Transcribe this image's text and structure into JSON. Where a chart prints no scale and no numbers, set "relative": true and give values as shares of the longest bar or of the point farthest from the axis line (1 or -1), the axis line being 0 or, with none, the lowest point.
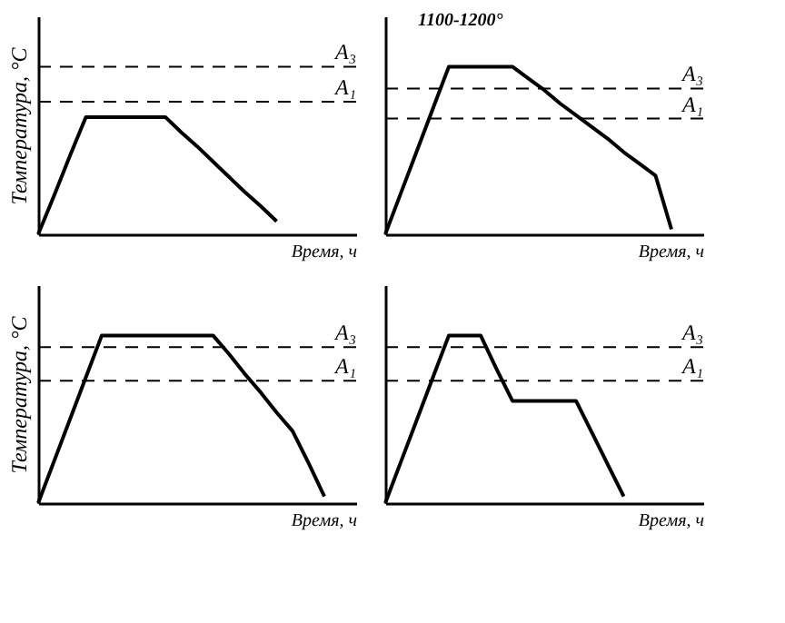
{
  "chart_data": [
    {
      "type": "line",
      "relative": true,
      "xlabel": "Время, ч",
      "ylabel": "Температура, °C",
      "line_style": "solid",
      "categories": [
        null,
        null,
        null,
        null,
        null,
        null,
        null,
        null,
        null,
        null,
        null,
        null,
        null,
        null,
        null,
        null,
        null,
        null,
        null,
        null,
        null
      ],
      "series": [
        {
          "color": "#000000",
          "values": [
            0,
            0.33,
            0.67,
            1,
            1,
            1,
            1,
            1,
            1,
            0.87,
            0.75,
            0.62,
            0.49,
            0.36,
            0.24,
            0.11,
            null,
            null,
            null,
            null,
            null
          ]
        }
      ],
      "ref_lines": [
        {
          "axis": "y",
          "value": 1.43,
          "label": "A₃",
          "line_style": "dashed",
          "color": "#000000"
        },
        {
          "axis": "y",
          "value": 1.13,
          "label": "A₁",
          "line_style": "dashed",
          "color": "#000000"
        }
      ]
    },
    {
      "type": "line",
      "relative": true,
      "xlabel": "Время, ч",
      "line_style": "solid",
      "categories": [
        null,
        null,
        null,
        null,
        null,
        null,
        null,
        null,
        null,
        null,
        null,
        null,
        null,
        null,
        null,
        null,
        null,
        null,
        null,
        null,
        null
      ],
      "series": [
        {
          "color": "#000000",
          "values": [
            0,
            0.25,
            0.5,
            0.75,
            1,
            1,
            1,
            1,
            1,
            0.93,
            0.86,
            0.78,
            0.71,
            0.64,
            0.57,
            0.49,
            0.42,
            0.35,
            0.03,
            null,
            null
          ]
        }
      ],
      "ref_lines": [
        {
          "axis": "y",
          "value": 0.87,
          "label": "A₃",
          "line_style": "dashed",
          "color": "#000000"
        },
        {
          "axis": "y",
          "value": 0.69,
          "label": "A₁",
          "line_style": "dashed",
          "color": "#000000"
        }
      ],
      "annotations": [
        "1100-1200°"
      ]
    },
    {
      "type": "line",
      "relative": true,
      "xlabel": "Время, ч",
      "ylabel": "Температура, °C",
      "line_style": "solid",
      "categories": [
        null,
        null,
        null,
        null,
        null,
        null,
        null,
        null,
        null,
        null,
        null,
        null,
        null,
        null,
        null,
        null,
        null,
        null,
        null,
        null,
        null
      ],
      "series": [
        {
          "color": "#000000",
          "values": [
            0,
            0.25,
            0.5,
            0.75,
            1,
            1,
            1,
            1,
            1,
            1,
            1,
            1,
            0.89,
            0.77,
            0.66,
            0.54,
            0.43,
            0.24,
            0.04,
            null,
            null
          ]
        }
      ],
      "ref_lines": [
        {
          "axis": "y",
          "value": 0.93,
          "label": "A₃",
          "line_style": "dashed",
          "color": "#000000"
        },
        {
          "axis": "y",
          "value": 0.73,
          "label": "A₁",
          "line_style": "dashed",
          "color": "#000000"
        }
      ]
    },
    {
      "type": "line",
      "relative": true,
      "xlabel": "Время, ч",
      "line_style": "solid",
      "categories": [
        null,
        null,
        null,
        null,
        null,
        null,
        null,
        null,
        null,
        null,
        null,
        null,
        null,
        null,
        null,
        null,
        null,
        null,
        null,
        null,
        null
      ],
      "series": [
        {
          "color": "#000000",
          "values": [
            0,
            0.25,
            0.5,
            0.75,
            1,
            1,
            1,
            0.8,
            0.61,
            0.61,
            0.61,
            0.61,
            0.61,
            0.42,
            0.23,
            0.04,
            null,
            null,
            null,
            null,
            null
          ]
        }
      ],
      "ref_lines": [
        {
          "axis": "y",
          "value": 0.93,
          "label": "A₃",
          "line_style": "dashed",
          "color": "#000000"
        },
        {
          "axis": "y",
          "value": 0.73,
          "label": "A₁",
          "line_style": "dashed",
          "color": "#000000"
        }
      ]
    }
  ]
}
